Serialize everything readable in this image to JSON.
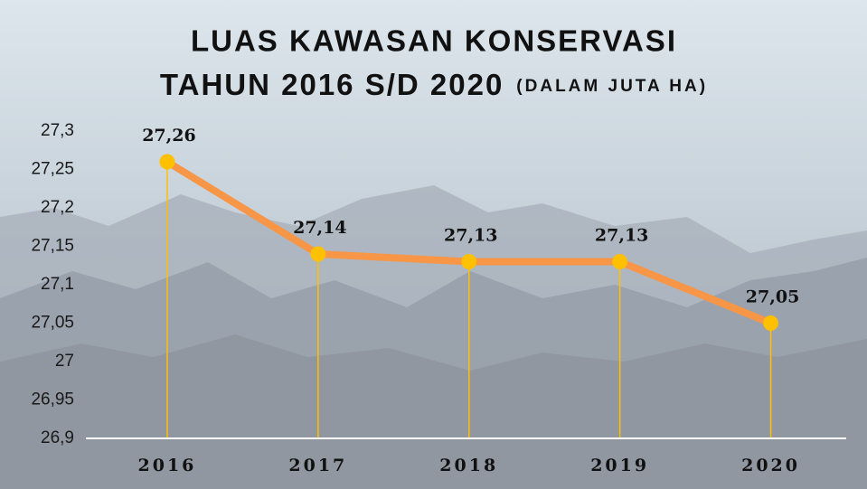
{
  "chart_data": {
    "type": "line",
    "title": [
      "LUAS KAWASAN KONSERVASI",
      "TAHUN 2016 S/D 2020"
    ],
    "subtitle": "(DALAM JUTA HA)",
    "categories": [
      "2016",
      "2017",
      "2018",
      "2019",
      "2020"
    ],
    "values": [
      27.26,
      27.14,
      27.13,
      27.13,
      27.05
    ],
    "value_labels": [
      "27,26",
      "27,14",
      "27,13",
      "27,13",
      "27,05"
    ],
    "color": "#f79646",
    "marker_color": "#ffc000",
    "drop_line_color": "#ffc000",
    "ylim": [
      26.9,
      27.3
    ],
    "yticks": [
      {
        "value": 26.9,
        "label": "26,9"
      },
      {
        "value": 26.95,
        "label": "26,95"
      },
      27,
      {
        "value": 27.05,
        "label": "27,05"
      },
      {
        "value": 27.1,
        "label": "27,1"
      },
      {
        "value": 27.15,
        "label": "27,15"
      },
      {
        "value": 27.2,
        "label": "27,2"
      },
      {
        "value": 27.25,
        "label": "27,25"
      },
      {
        "value": 27.3,
        "label": "27,3"
      }
    ],
    "grid": false
  }
}
